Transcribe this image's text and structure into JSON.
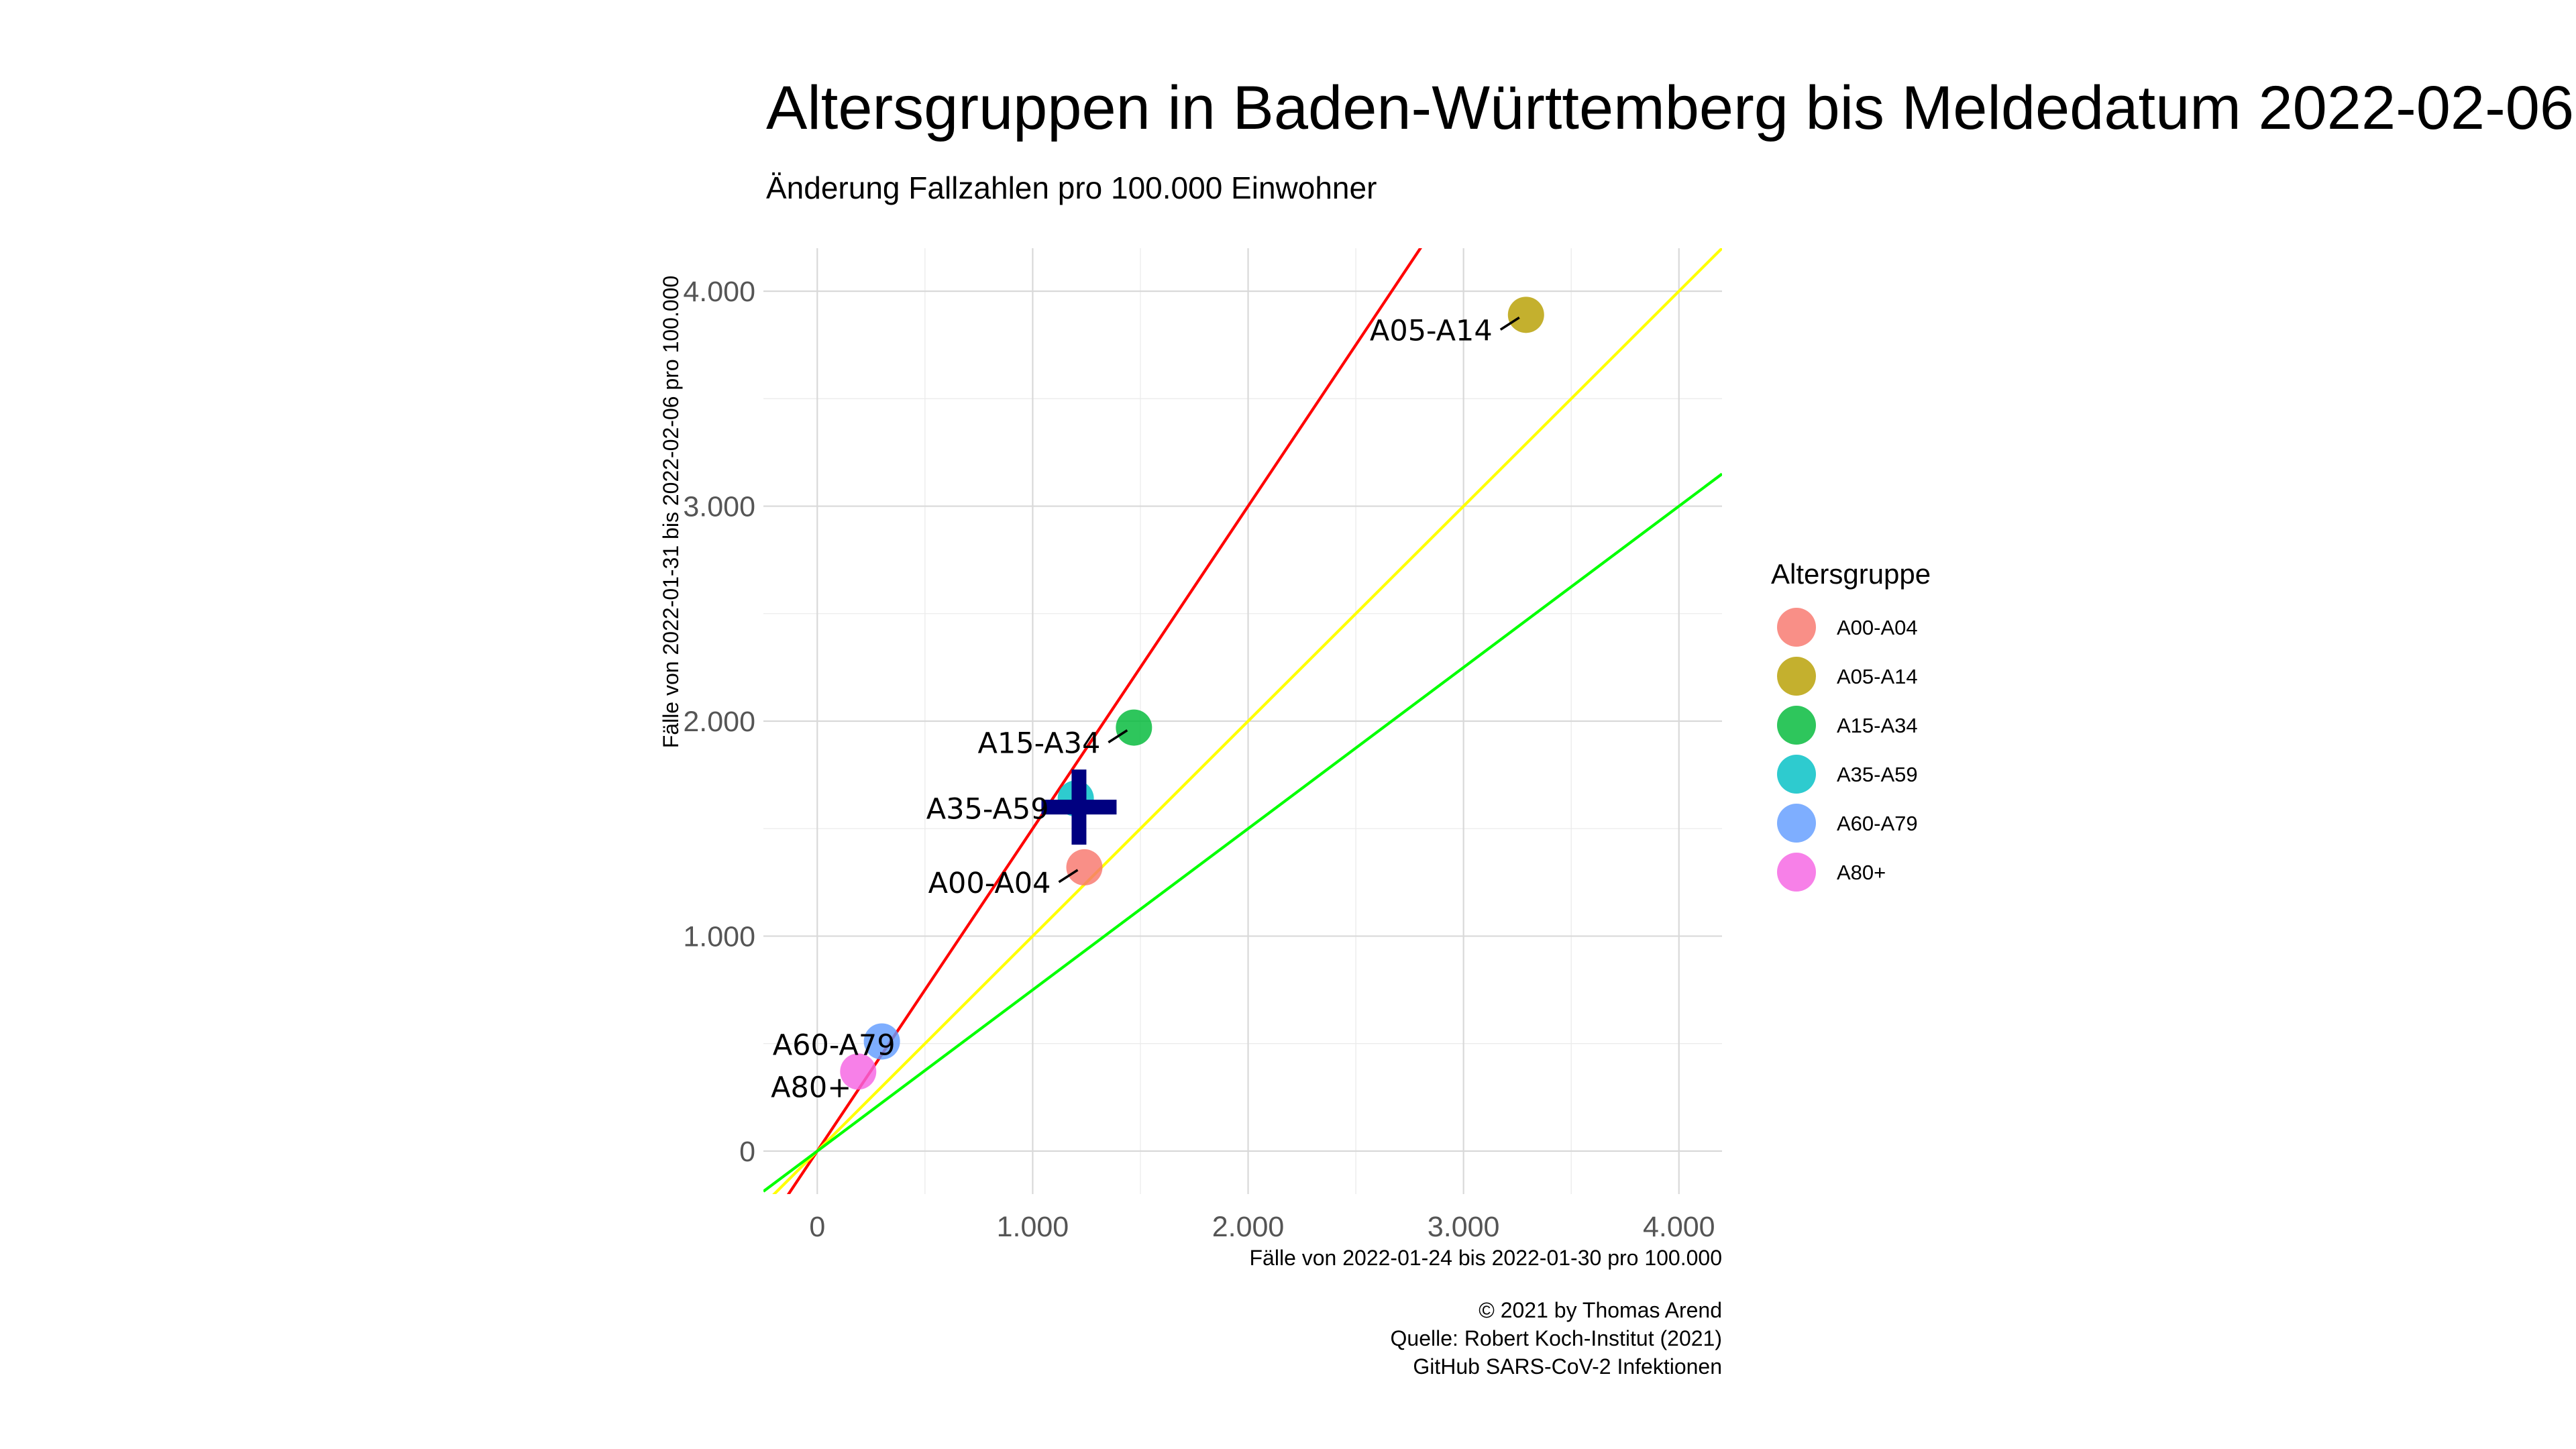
{
  "title": "Altersgruppen in Baden-Württemberg bis Meldedatum 2022-02-06",
  "subtitle": "Änderung Fallzahlen pro 100.000 Einwohner",
  "caption": [
    "© 2021 by Thomas Arend",
    "Quelle: Robert Koch-Institut (2021)",
    "GitHub SARS-CoV-2 Infektionen"
  ],
  "chart_data": {
    "type": "scatter",
    "xlabel": "Fälle von 2022-01-24 bis 2022-01-30 pro 100.000",
    "ylabel": "Fälle von 2022-01-31 bis 2022-02-06 pro 100.000",
    "xlim": [
      -250,
      4200
    ],
    "ylim": [
      -200,
      4200
    ],
    "x_ticks": [
      0,
      1000,
      2000,
      3000,
      4000
    ],
    "x_tick_labels": [
      "0",
      "1.000",
      "2.000",
      "3.000",
      "4.000"
    ],
    "y_ticks": [
      0,
      1000,
      2000,
      3000,
      4000
    ],
    "y_tick_labels": [
      "0",
      "1.000",
      "2.000",
      "3.000",
      "4.000"
    ],
    "grid": true,
    "legend": {
      "title": "Altersgruppe",
      "position": "right",
      "entries": [
        "A00-A04",
        "A05-A14",
        "A15-A34",
        "A35-A59",
        "A60-A79",
        "A80+"
      ]
    },
    "points": [
      {
        "label": "A00-A04",
        "x": 1240,
        "y": 1320,
        "color": "#F8766D"
      },
      {
        "label": "A05-A14",
        "x": 3290,
        "y": 3890,
        "color": "#B79F00"
      },
      {
        "label": "A15-A34",
        "x": 1470,
        "y": 1970,
        "color": "#00BA38"
      },
      {
        "label": "A35-A59",
        "x": 1200,
        "y": 1640,
        "color": "#00BFC4"
      },
      {
        "label": "A60-A79",
        "x": 300,
        "y": 510,
        "color": "#619CFF"
      },
      {
        "label": "A80+",
        "x": 190,
        "y": 370,
        "color": "#F564E3"
      }
    ],
    "total_marker": {
      "x": 1215,
      "y": 1600,
      "shape": "plus",
      "color": "#000080"
    },
    "reference_lines": [
      {
        "slope": 1.5,
        "color": "#FF0000"
      },
      {
        "slope": 1.0,
        "color": "#FFFF00"
      },
      {
        "slope": 0.75,
        "color": "#00FF00"
      }
    ]
  }
}
